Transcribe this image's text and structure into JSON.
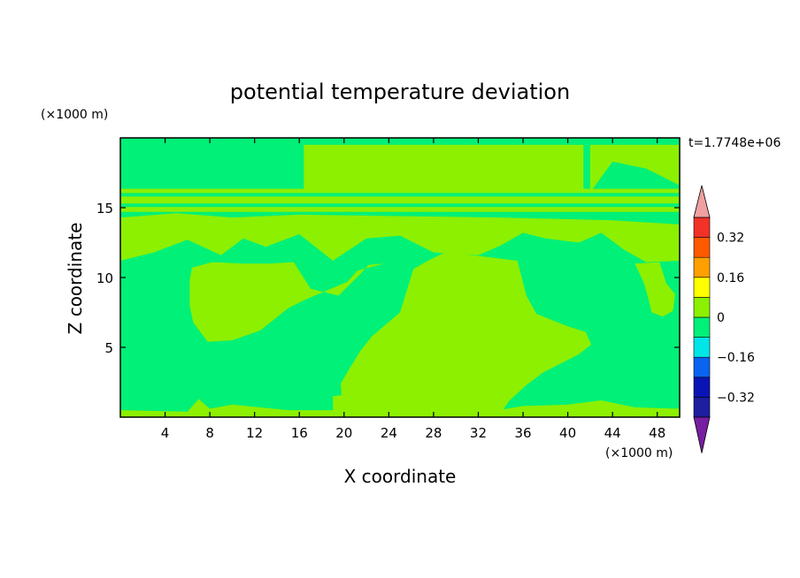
{
  "chart_data": {
    "type": "heatmap",
    "title": "potential temperature deviation",
    "xlabel": "X coordinate",
    "ylabel": "Z coordinate",
    "x_unit": "(×1000 m)",
    "y_unit": "(×1000 m)",
    "time_label": "t=1.7748e+06",
    "xlim": [
      0,
      50
    ],
    "ylim": [
      0,
      20
    ],
    "x_ticks": [
      4,
      8,
      12,
      16,
      20,
      24,
      28,
      32,
      36,
      40,
      44,
      48
    ],
    "y_ticks": [
      5,
      10,
      15
    ],
    "colorbar": {
      "levels": [
        -0.4,
        -0.32,
        -0.24,
        -0.16,
        -0.08,
        0,
        0.08,
        0.16,
        0.24,
        0.32,
        0.4
      ],
      "tick_values": [
        0.32,
        0.16,
        0,
        -0.16,
        -0.32
      ],
      "tick_labels": [
        "0.32",
        "0.16",
        "0",
        "−0.16",
        "−0.32"
      ],
      "colors": [
        "#5a1494",
        "#1e1ea0",
        "#0a14b4",
        "#0a64f0",
        "#00e6e6",
        "#00f078",
        "#8cf000",
        "#ffff00",
        "#ffa000",
        "#ff5a00",
        "#f03228",
        "#f0a0a0"
      ],
      "under_color": "#781ea0",
      "over_color": "#f0a0a0"
    },
    "field": {
      "positive_color": "#8cf000",
      "negative_color": "#00f078",
      "background_value": "negative",
      "positive_regions": [
        {
          "name": "upper-left-band",
          "points": [
            [
              0,
              11.2
            ],
            [
              0,
              14.3
            ],
            [
              5,
              14.6
            ],
            [
              10,
              14.3
            ],
            [
              16,
              14.5
            ],
            [
              25,
              14.4
            ],
            [
              34,
              14.3
            ],
            [
              44,
              14.1
            ],
            [
              50,
              13.8
            ],
            [
              50,
              11.2
            ],
            [
              47,
              11.1
            ],
            [
              45,
              12
            ],
            [
              43,
              13.2
            ],
            [
              41,
              12.5
            ],
            [
              38,
              12.8
            ],
            [
              36,
              13.2
            ],
            [
              34,
              12.3
            ],
            [
              32,
              11.6
            ],
            [
              28,
              11.8
            ],
            [
              25,
              13
            ],
            [
              22,
              12.8
            ],
            [
              19,
              11.2
            ],
            [
              16,
              13.1
            ],
            [
              13,
              12.2
            ],
            [
              11,
              12.8
            ],
            [
              9,
              11.6
            ],
            [
              6,
              12.7
            ],
            [
              3,
              11.8
            ]
          ]
        },
        {
          "name": "upper-sky",
          "points": [
            [
              16.4,
              16.1
            ],
            [
              16.4,
              19.5
            ],
            [
              41.4,
              19.5
            ],
            [
              41.4,
              16.1
            ]
          ]
        },
        {
          "name": "upper-right-corner",
          "points": [
            [
              42,
              16.1
            ],
            [
              42,
              19.5
            ],
            [
              50,
              19.5
            ],
            [
              50,
              16.6
            ],
            [
              47,
              17.8
            ],
            [
              44,
              18.3
            ]
          ]
        },
        {
          "name": "central-plume",
          "points": [
            [
              26.2,
              10.6
            ],
            [
              27.5,
              11.2
            ],
            [
              29,
              11.8
            ],
            [
              31.5,
              11.6
            ],
            [
              35.5,
              11.2
            ],
            [
              36.3,
              8.7
            ],
            [
              37.2,
              7.4
            ],
            [
              40,
              6.5
            ],
            [
              41.6,
              6.1
            ],
            [
              42.1,
              5.2
            ],
            [
              41,
              4.5
            ],
            [
              37.8,
              3.2
            ],
            [
              36.3,
              2.3
            ],
            [
              34.8,
              1.2
            ],
            [
              34,
              0.3
            ],
            [
              20,
              0.3
            ],
            [
              19.8,
              1.2
            ],
            [
              19.7,
              2.4
            ],
            [
              20.5,
              3.5
            ],
            [
              21.5,
              4.8
            ],
            [
              22.5,
              5.8
            ],
            [
              25,
              7.5
            ]
          ]
        },
        {
          "name": "left-lobe",
          "points": [
            [
              6.2,
              9.8
            ],
            [
              6.4,
              10.7
            ],
            [
              8.2,
              11.1
            ],
            [
              11,
              11
            ],
            [
              13.3,
              11
            ],
            [
              15.5,
              11.1
            ],
            [
              17,
              9.2
            ],
            [
              19.5,
              8.7
            ],
            [
              21.4,
              10.2
            ],
            [
              22.2,
              10.9
            ],
            [
              23.6,
              11
            ],
            [
              21.2,
              10.5
            ],
            [
              20.3,
              9.7
            ],
            [
              16.5,
              8.4
            ],
            [
              15,
              7.8
            ],
            [
              12.5,
              6.2
            ],
            [
              10,
              5.5
            ],
            [
              7.8,
              5.4
            ],
            [
              6.5,
              6.8
            ],
            [
              6.2,
              8
            ]
          ]
        },
        {
          "name": "right-tongue",
          "points": [
            [
              46,
              11
            ],
            [
              46.8,
              9.6
            ],
            [
              47.2,
              8.5
            ],
            [
              47.5,
              7.5
            ],
            [
              48.5,
              7.2
            ],
            [
              49.4,
              7.6
            ],
            [
              49.6,
              8.8
            ],
            [
              48.8,
              9.6
            ],
            [
              48.4,
              10.6
            ],
            [
              48.2,
              11.1
            ]
          ]
        },
        {
          "name": "bottom-band",
          "points": [
            [
              0,
              0
            ],
            [
              0,
              0.5
            ],
            [
              6,
              0.4
            ],
            [
              7,
              1.3
            ],
            [
              8,
              0.6
            ],
            [
              10,
              0.9
            ],
            [
              15,
              0.5
            ],
            [
              19,
              0.5
            ],
            [
              19,
              1.5
            ],
            [
              22,
              1.8
            ],
            [
              25,
              1.3
            ],
            [
              28,
              0.5
            ],
            [
              33,
              0.4
            ],
            [
              36,
              0.8
            ],
            [
              40,
              0.9
            ],
            [
              43,
              1.2
            ],
            [
              46,
              0.7
            ],
            [
              50,
              0.6
            ],
            [
              50,
              0
            ]
          ]
        }
      ],
      "positive_bands_z": [
        [
          15.3,
          15.8
        ],
        [
          14.7,
          15.05
        ],
        [
          16.05,
          16.35
        ]
      ]
    }
  }
}
